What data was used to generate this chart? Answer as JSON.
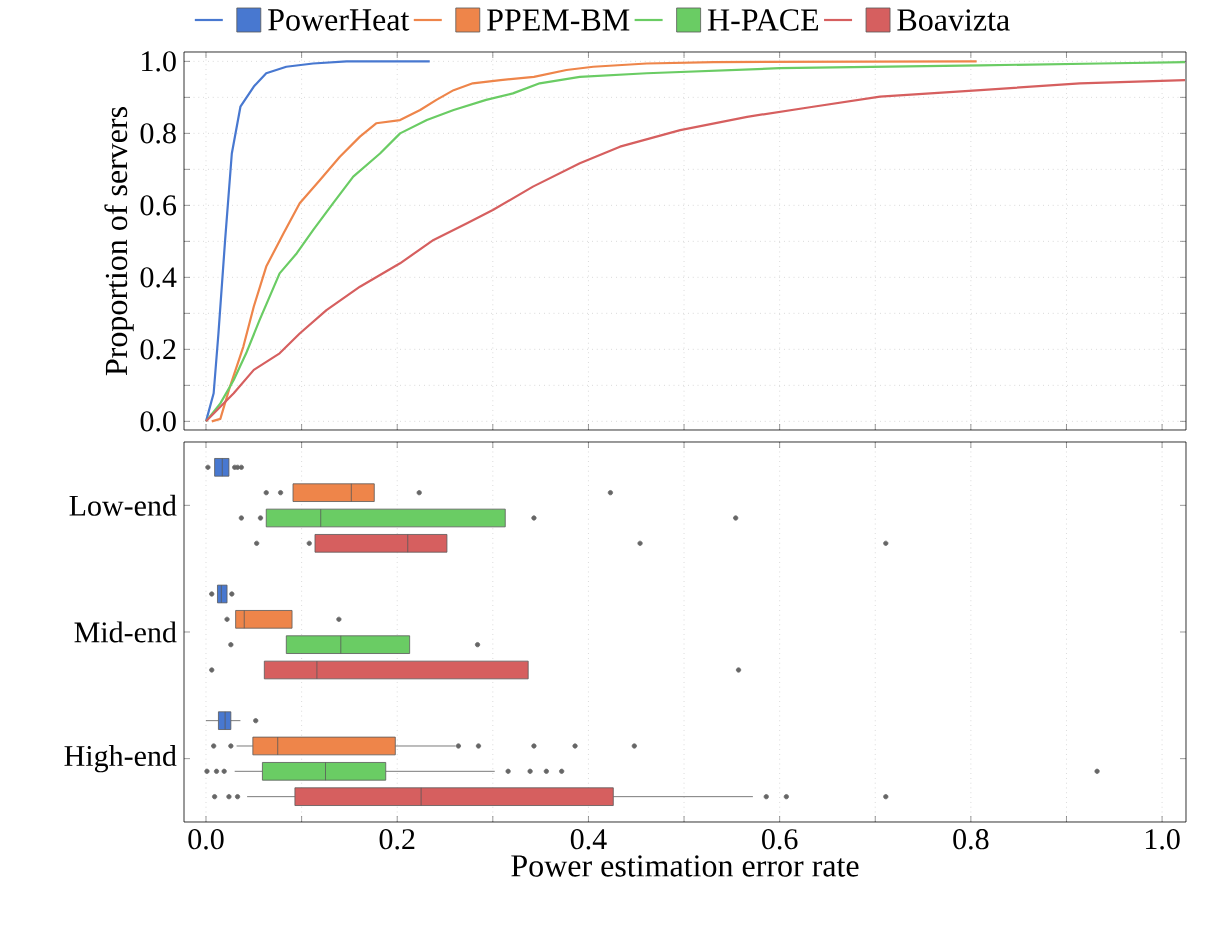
{
  "chart_data": [
    {
      "type": "line",
      "ylabel": "Proportion of servers",
      "xlim": [
        -0.023,
        1.025
      ],
      "ylim": [
        -0.024,
        1.026
      ],
      "grid": true,
      "legend": "top",
      "tick_labels": "y",
      "line_style": "solid",
      "xticks": [
        {
          "value": 0,
          "label": null
        },
        {
          "value": 0.1,
          "label": null
        },
        {
          "value": 0.2,
          "label": null
        },
        {
          "value": 0.3,
          "label": null
        },
        {
          "value": 0.4,
          "label": null
        },
        {
          "value": 0.5,
          "label": null
        },
        {
          "value": 0.6,
          "label": null
        },
        {
          "value": 0.7,
          "label": null
        },
        {
          "value": 0.8,
          "label": null
        },
        {
          "value": 0.9,
          "label": null
        },
        {
          "value": 1.0,
          "label": null
        }
      ],
      "yticks": [
        {
          "value": 0,
          "label": "0.0"
        },
        {
          "value": 0.1,
          "label": null
        },
        {
          "value": 0.2,
          "label": "0.2"
        },
        {
          "value": 0.3,
          "label": null
        },
        {
          "value": 0.4,
          "label": "0.4"
        },
        {
          "value": 0.5,
          "label": null
        },
        {
          "value": 0.6,
          "label": "0.6"
        },
        {
          "value": 0.7,
          "label": null
        },
        {
          "value": 0.8,
          "label": "0.8"
        },
        {
          "value": 0.9,
          "label": null
        },
        {
          "value": 1.0,
          "label": "1.0"
        }
      ],
      "series": [
        {
          "name": "PowerHeat",
          "color": "#4878d0",
          "x": [
            0,
            0.008,
            0.013,
            0.02,
            0.027,
            0.036,
            0.05,
            0.063,
            0.084,
            0.112,
            0.147,
            0.234
          ],
          "values": [
            0,
            0.078,
            0.244,
            0.504,
            0.744,
            0.874,
            0.93,
            0.967,
            0.985,
            0.994,
            1.0,
            1.0
          ]
        },
        {
          "name": "PPEM-BM",
          "color": "#ee854a",
          "x": [
            0.006,
            0.015,
            0.025,
            0.039,
            0.05,
            0.063,
            0.081,
            0.098,
            0.119,
            0.14,
            0.161,
            0.178,
            0.203,
            0.224,
            0.241,
            0.259,
            0.279,
            0.308,
            0.343,
            0.377,
            0.405,
            0.461,
            0.531,
            0.806
          ],
          "values": [
            0,
            0.007,
            0.096,
            0.207,
            0.319,
            0.43,
            0.522,
            0.606,
            0.67,
            0.735,
            0.791,
            0.828,
            0.837,
            0.865,
            0.893,
            0.92,
            0.939,
            0.948,
            0.957,
            0.976,
            0.985,
            0.994,
            0.998,
            1.0
          ]
        },
        {
          "name": "H-PACE",
          "color": "#6acc64",
          "x": [
            0,
            0.015,
            0.029,
            0.042,
            0.056,
            0.077,
            0.095,
            0.112,
            0.133,
            0.154,
            0.182,
            0.203,
            0.231,
            0.259,
            0.293,
            0.321,
            0.349,
            0.391,
            0.461,
            0.6,
            0.81,
            0.935,
            1.024
          ],
          "values": [
            0,
            0.05,
            0.115,
            0.189,
            0.281,
            0.411,
            0.467,
            0.531,
            0.606,
            0.68,
            0.744,
            0.8,
            0.837,
            0.865,
            0.893,
            0.911,
            0.939,
            0.957,
            0.967,
            0.981,
            0.989,
            0.994,
            0.998
          ]
        },
        {
          "name": "Boavizta",
          "color": "#d65f5f",
          "x": [
            0,
            0.029,
            0.05,
            0.077,
            0.098,
            0.126,
            0.161,
            0.203,
            0.238,
            0.273,
            0.3,
            0.342,
            0.391,
            0.433,
            0.496,
            0.566,
            0.635,
            0.705,
            0.81,
            0.914,
            1.024
          ],
          "values": [
            0,
            0.078,
            0.143,
            0.189,
            0.244,
            0.309,
            0.374,
            0.439,
            0.504,
            0.55,
            0.587,
            0.652,
            0.717,
            0.763,
            0.809,
            0.846,
            0.874,
            0.902,
            0.92,
            0.939,
            0.948
          ]
        }
      ]
    },
    {
      "type": "box",
      "orientation": "horizontal",
      "xlabel": "Power estimation error rate",
      "categories": [
        "Low-end",
        "Mid-end",
        "High-end"
      ],
      "xlim": [
        -0.023,
        1.025
      ],
      "grid": "x",
      "xticks": [
        {
          "value": 0,
          "label": "0.0"
        },
        {
          "value": 0.1,
          "label": null
        },
        {
          "value": 0.2,
          "label": "0.2"
        },
        {
          "value": 0.3,
          "label": null
        },
        {
          "value": 0.4,
          "label": "0.4"
        },
        {
          "value": 0.5,
          "label": null
        },
        {
          "value": 0.6,
          "label": "0.6"
        },
        {
          "value": 0.7,
          "label": null
        },
        {
          "value": 0.8,
          "label": "0.8"
        },
        {
          "value": 0.9,
          "label": null
        },
        {
          "value": 1.0,
          "label": "1.0"
        }
      ],
      "series": [
        {
          "color": "#4878d0",
          "boxes": [
            {
              "low": 0.009,
              "q1": 0.009,
              "median": 0.017,
              "q3": 0.024,
              "high": 0.024,
              "outliers": [
                0.002,
                0.03,
                0.033,
                0.037
              ]
            },
            {
              "low": 0.012,
              "q1": 0.012,
              "median": 0.016,
              "q3": 0.022,
              "high": 0.022,
              "outliers": [
                0.006,
                0.027
              ]
            },
            {
              "low": 0.0,
              "q1": 0.013,
              "median": 0.02,
              "q3": 0.026,
              "high": 0.036,
              "outliers": [
                0.052
              ]
            }
          ]
        },
        {
          "color": "#ee854a",
          "boxes": [
            {
              "low": 0.091,
              "q1": 0.091,
              "median": 0.152,
              "q3": 0.176,
              "high": 0.176,
              "outliers": [
                0.063,
                0.078,
                0.223,
                0.423
              ]
            },
            {
              "low": 0.031,
              "q1": 0.031,
              "median": 0.04,
              "q3": 0.09,
              "high": 0.09,
              "outliers": [
                0.022,
                0.139
              ]
            },
            {
              "low": 0.032,
              "q1": 0.049,
              "median": 0.075,
              "q3": 0.198,
              "high": 0.261,
              "outliers": [
                0.008,
                0.026,
                0.264,
                0.285,
                0.343,
                0.386,
                0.448
              ]
            }
          ]
        },
        {
          "color": "#6acc64",
          "boxes": [
            {
              "low": 0.063,
              "q1": 0.063,
              "median": 0.12,
              "q3": 0.313,
              "high": 0.313,
              "outliers": [
                0.037,
                0.057,
                0.343,
                0.554
              ]
            },
            {
              "low": 0.084,
              "q1": 0.084,
              "median": 0.141,
              "q3": 0.213,
              "high": 0.213,
              "outliers": [
                0.026,
                0.284
              ]
            },
            {
              "low": 0.03,
              "q1": 0.059,
              "median": 0.125,
              "q3": 0.188,
              "high": 0.302,
              "outliers": [
                0.001,
                0.011,
                0.019,
                0.316,
                0.339,
                0.356,
                0.372,
                0.932
              ]
            }
          ]
        },
        {
          "color": "#d65f5f",
          "boxes": [
            {
              "low": 0.114,
              "q1": 0.114,
              "median": 0.211,
              "q3": 0.252,
              "high": 0.252,
              "outliers": [
                0.053,
                0.108,
                0.454,
                0.711
              ]
            },
            {
              "low": 0.061,
              "q1": 0.061,
              "median": 0.116,
              "q3": 0.337,
              "high": 0.337,
              "outliers": [
                0.006,
                0.557
              ]
            },
            {
              "low": 0.043,
              "q1": 0.093,
              "median": 0.225,
              "q3": 0.426,
              "high": 0.572,
              "outliers": [
                0.009,
                0.024,
                0.033,
                0.586,
                0.607,
                0.711
              ]
            }
          ]
        }
      ]
    }
  ]
}
